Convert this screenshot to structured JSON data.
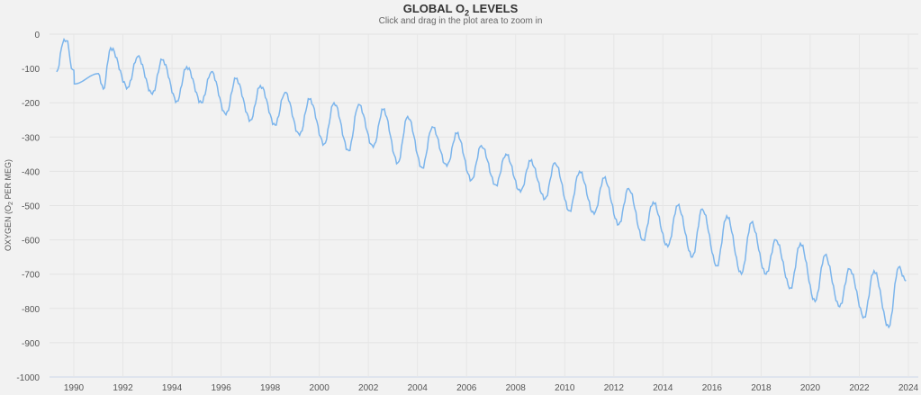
{
  "chart_data": {
    "type": "line",
    "title_main": "GLOBAL O",
    "title_sub": "2",
    "title_rest": " LEVELS",
    "subtitle": "Click and drag in the plot area to zoom in",
    "ylabel_main": "OXYGEN (O",
    "ylabel_sub": "2",
    "ylabel_rest": " PER MEG)",
    "xlim": [
      1989,
      2024.4
    ],
    "ylim": [
      -1000,
      0
    ],
    "x_ticks": [
      "1990",
      "1992",
      "1994",
      "1996",
      "1998",
      "2000",
      "2002",
      "2004",
      "2006",
      "2008",
      "2010",
      "2012",
      "2014",
      "2016",
      "2018",
      "2020",
      "2022",
      "2024"
    ],
    "y_ticks": [
      "0",
      "-100",
      "-200",
      "-300",
      "-400",
      "-500",
      "-600",
      "-700",
      "-800",
      "-900",
      "-1000"
    ],
    "grid": true,
    "color": "#7cb5ec",
    "series": [
      {
        "name": "Global O2",
        "x": [
          1989.3,
          1989.6,
          1989.75,
          1989.9,
          1990.0,
          1990.02,
          1991.0,
          1991.2,
          1991.5,
          1992.2,
          1992.6,
          1993.2,
          1993.6,
          1994.2,
          1994.6,
          1995.2,
          1995.6,
          1996.2,
          1996.6,
          1997.2,
          1997.6,
          1998.2,
          1998.6,
          1999.2,
          1999.6,
          2000.2,
          2000.6,
          2001.2,
          2001.6,
          2002.2,
          2002.6,
          2003.2,
          2003.6,
          2004.2,
          2004.6,
          2005.2,
          2005.6,
          2006.2,
          2006.6,
          2007.2,
          2007.6,
          2008.2,
          2008.6,
          2009.2,
          2009.6,
          2010.2,
          2010.6,
          2011.2,
          2011.6,
          2012.2,
          2012.6,
          2013.2,
          2013.6,
          2014.2,
          2014.6,
          2015.2,
          2015.6,
          2016.2,
          2016.6,
          2017.2,
          2017.6,
          2018.2,
          2018.6,
          2019.2,
          2019.6,
          2020.2,
          2020.6,
          2021.2,
          2021.6,
          2022.2,
          2022.6,
          2023.2,
          2023.6,
          2023.9
        ],
        "y": [
          -110,
          -15,
          -20,
          -100,
          -105,
          -145,
          -115,
          -160,
          -40,
          -155,
          -65,
          -175,
          -75,
          -195,
          -95,
          -200,
          -110,
          -235,
          -130,
          -250,
          -150,
          -265,
          -170,
          -295,
          -190,
          -320,
          -200,
          -340,
          -205,
          -330,
          -220,
          -375,
          -240,
          -390,
          -270,
          -385,
          -290,
          -425,
          -325,
          -440,
          -350,
          -460,
          -370,
          -480,
          -375,
          -515,
          -400,
          -525,
          -420,
          -555,
          -450,
          -600,
          -490,
          -620,
          -500,
          -650,
          -510,
          -675,
          -530,
          -700,
          -550,
          -700,
          -600,
          -740,
          -610,
          -780,
          -645,
          -795,
          -685,
          -825,
          -690,
          -855,
          -680,
          -720
        ]
      }
    ]
  }
}
